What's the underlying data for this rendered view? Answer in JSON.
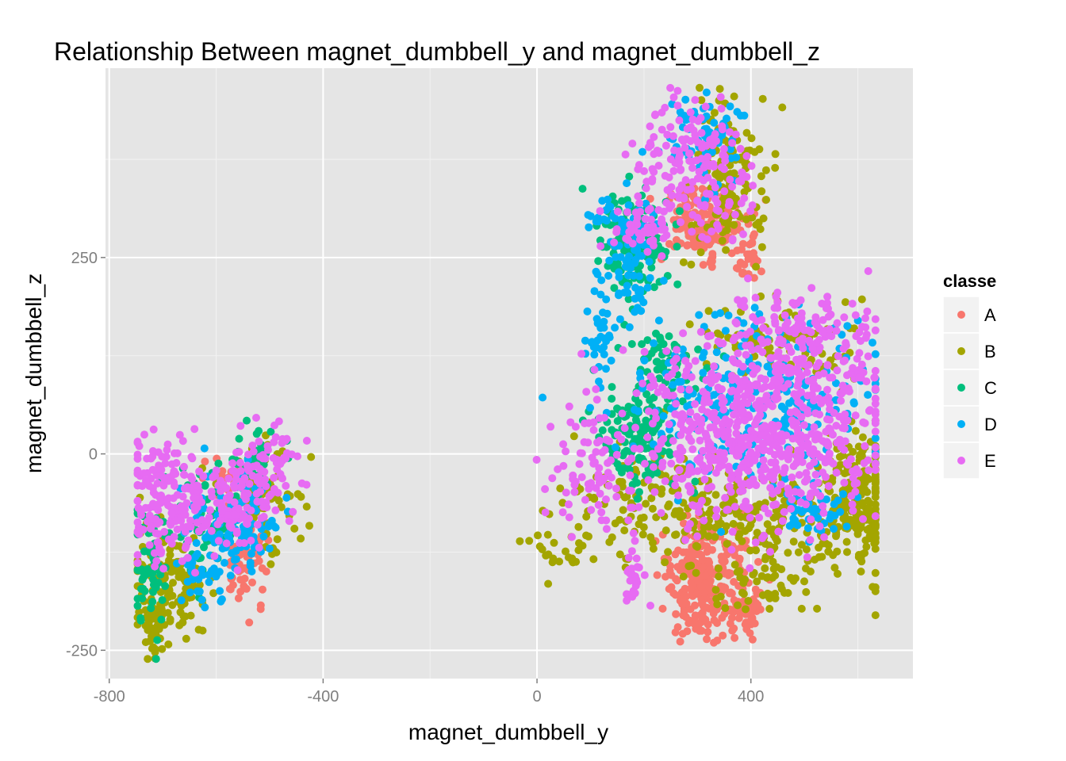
{
  "chart_data": {
    "type": "scatter",
    "title": "Relationship Between magnet_dumbbell_y and magnet_dumbbell_z",
    "xlabel": "magnet_dumbbell_y",
    "ylabel": "magnet_dumbbell_z",
    "xlim": [
      -807,
      703
    ],
    "ylim": [
      -286,
      491
    ],
    "x_ticks": [
      -800,
      -400,
      0,
      400
    ],
    "x_tick_labels": [
      "-800",
      "-400",
      "0",
      "400"
    ],
    "y_ticks": [
      -250,
      0,
      250
    ],
    "y_tick_labels": [
      "-250",
      "0",
      "250"
    ],
    "grid": true,
    "panel_background": "#e5e5e5",
    "legend": {
      "title": "classe",
      "position": "right"
    },
    "series": [
      {
        "name": "A",
        "color": "#f8766d",
        "clusters": [
          {
            "cx": 310,
            "cy": 295,
            "sx": 40,
            "sy": 22,
            "n": 180
          },
          {
            "cx": 390,
            "cy": 250,
            "sx": 15,
            "sy": 15,
            "n": 25
          },
          {
            "cx": 300,
            "cy": -170,
            "sx": 30,
            "sy": 35,
            "n": 200
          },
          {
            "cx": 390,
            "cy": -200,
            "sx": 20,
            "sy": 15,
            "n": 60
          },
          {
            "cx": 340,
            "cy": -120,
            "sx": 40,
            "sy": 20,
            "n": 60
          },
          {
            "cx": -550,
            "cy": -130,
            "sx": 25,
            "sy": 35,
            "n": 70
          },
          {
            "cx": -580,
            "cy": -30,
            "sx": 20,
            "sy": 15,
            "n": 25
          }
        ]
      },
      {
        "name": "B",
        "color": "#a3a500",
        "clusters": [
          {
            "cx": 360,
            "cy": 350,
            "sx": 40,
            "sy": 45,
            "n": 140
          },
          {
            "cx": 600,
            "cy": -60,
            "sx": 30,
            "sy": 50,
            "n": 200
          },
          {
            "cx": 420,
            "cy": -80,
            "sx": 110,
            "sy": 30,
            "n": 200
          },
          {
            "cx": 200,
            "cy": -60,
            "sx": 80,
            "sy": 40,
            "n": 90
          },
          {
            "cx": 60,
            "cy": -120,
            "sx": 40,
            "sy": 20,
            "n": 30
          },
          {
            "cx": 420,
            "cy": -160,
            "sx": 50,
            "sy": 25,
            "n": 60
          },
          {
            "cx": 450,
            "cy": 140,
            "sx": 80,
            "sy": 25,
            "n": 80
          },
          {
            "cx": -680,
            "cy": -170,
            "sx": 40,
            "sy": 35,
            "n": 140
          },
          {
            "cx": -720,
            "cy": -220,
            "sx": 10,
            "sy": 20,
            "n": 30
          },
          {
            "cx": -520,
            "cy": -70,
            "sx": 40,
            "sy": 40,
            "n": 80
          }
        ]
      },
      {
        "name": "C",
        "color": "#00bf7d",
        "clusters": [
          {
            "cx": 180,
            "cy": 270,
            "sx": 35,
            "sy": 30,
            "n": 130
          },
          {
            "cx": 240,
            "cy": 120,
            "sx": 35,
            "sy": 25,
            "n": 60
          },
          {
            "cx": 190,
            "cy": 20,
            "sx": 40,
            "sy": 35,
            "n": 140
          },
          {
            "cx": -720,
            "cy": -150,
            "sx": 15,
            "sy": 45,
            "n": 60
          },
          {
            "cx": -620,
            "cy": -90,
            "sx": 40,
            "sy": 30,
            "n": 60
          },
          {
            "cx": -520,
            "cy": -20,
            "sx": 25,
            "sy": 25,
            "n": 40
          }
        ]
      },
      {
        "name": "D",
        "color": "#00b0f6",
        "clusters": [
          {
            "cx": 180,
            "cy": 250,
            "sx": 25,
            "sy": 40,
            "n": 80
          },
          {
            "cx": 125,
            "cy": 150,
            "sx": 15,
            "sy": 40,
            "n": 40
          },
          {
            "cx": 310,
            "cy": 400,
            "sx": 35,
            "sy": 25,
            "n": 70
          },
          {
            "cx": 130,
            "cy": 305,
            "sx": 15,
            "sy": 10,
            "n": 20
          },
          {
            "cx": 420,
            "cy": 70,
            "sx": 120,
            "sy": 55,
            "n": 260
          },
          {
            "cx": 510,
            "cy": -70,
            "sx": 30,
            "sy": 15,
            "n": 40
          },
          {
            "cx": -560,
            "cy": -90,
            "sx": 40,
            "sy": 30,
            "n": 120
          },
          {
            "cx": -620,
            "cy": -150,
            "sx": 30,
            "sy": 20,
            "n": 30
          }
        ]
      },
      {
        "name": "E",
        "color": "#e76bf3",
        "clusters": [
          {
            "cx": 290,
            "cy": 360,
            "sx": 60,
            "sy": 40,
            "n": 180
          },
          {
            "cx": 200,
            "cy": 285,
            "sx": 30,
            "sy": 15,
            "n": 50
          },
          {
            "cx": 420,
            "cy": 30,
            "sx": 120,
            "sy": 65,
            "n": 700
          },
          {
            "cx": 500,
            "cy": 150,
            "sx": 70,
            "sy": 25,
            "n": 120
          },
          {
            "cx": 100,
            "cy": -20,
            "sx": 40,
            "sy": 45,
            "n": 80
          },
          {
            "cx": 180,
            "cy": -160,
            "sx": 15,
            "sy": 20,
            "n": 25
          },
          {
            "cx": -690,
            "cy": -60,
            "sx": 40,
            "sy": 40,
            "n": 180
          },
          {
            "cx": -560,
            "cy": -60,
            "sx": 35,
            "sy": 30,
            "n": 120
          },
          {
            "cx": -500,
            "cy": -10,
            "sx": 30,
            "sy": 25,
            "n": 50
          }
        ]
      }
    ]
  }
}
